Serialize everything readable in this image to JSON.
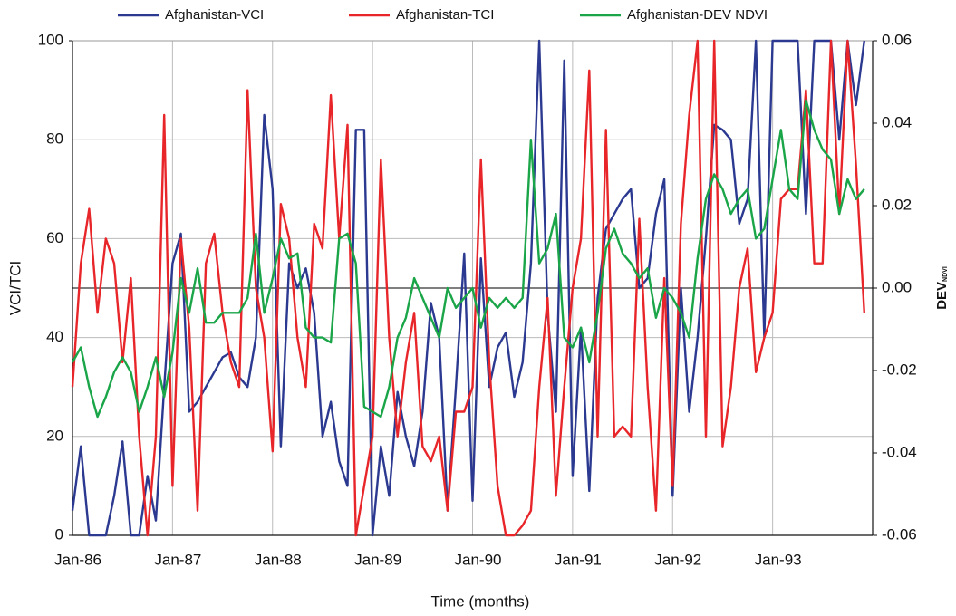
{
  "chart_data": {
    "type": "line",
    "x_label": "Time (months)",
    "y_label": "VCI/TCI",
    "y2_label": "DEV",
    "y2_label_sub": "NDVI",
    "categories": [
      "Jan-86",
      null,
      null,
      null,
      null,
      null,
      null,
      null,
      null,
      null,
      null,
      null,
      "Jan-87",
      null,
      null,
      null,
      null,
      null,
      null,
      null,
      null,
      null,
      null,
      null,
      "Jan-88",
      null,
      null,
      null,
      null,
      null,
      null,
      null,
      null,
      null,
      null,
      null,
      "Jan-89",
      null,
      null,
      null,
      null,
      null,
      null,
      null,
      null,
      null,
      null,
      null,
      "Jan-90",
      null,
      null,
      null,
      null,
      null,
      null,
      null,
      null,
      null,
      null,
      null,
      "Jan-91",
      null,
      null,
      null,
      null,
      null,
      null,
      null,
      null,
      null,
      null,
      null,
      "Jan-92",
      null,
      null,
      null,
      null,
      null,
      null,
      null,
      null,
      null,
      null,
      null,
      "Jan-93",
      null,
      null,
      null,
      null,
      null,
      null,
      null,
      null,
      null,
      null,
      null
    ],
    "ylim": [
      0,
      100
    ],
    "yticks": [
      0,
      20,
      40,
      60,
      80,
      100
    ],
    "y2lim": [
      -0.06,
      0.06
    ],
    "y2ticks": [
      -0.06,
      -0.04,
      -0.02,
      {
        "value": 0,
        "label": "0.00"
      },
      0.02,
      0.04,
      0.06
    ],
    "grid": true,
    "legend": "top",
    "series": [
      {
        "name": "Afghanistan-VCI",
        "color": "#2b3990",
        "values": [
          5,
          18,
          0,
          0,
          0,
          8,
          19,
          0,
          0,
          12,
          3,
          30,
          55,
          61,
          25,
          27,
          30,
          33,
          36,
          37,
          32,
          30,
          40,
          85,
          70,
          18,
          55,
          50,
          54,
          45,
          20,
          27,
          15,
          10,
          82,
          82,
          0,
          18,
          8,
          29,
          20,
          14,
          25,
          47,
          40,
          5,
          30,
          57,
          7,
          56,
          30,
          38,
          41,
          28,
          35,
          55,
          100,
          45,
          25,
          96,
          12,
          42,
          9,
          48,
          62,
          65,
          68,
          70,
          50,
          52,
          65,
          72,
          8,
          50,
          25,
          40,
          60,
          83,
          82,
          80,
          63,
          68,
          100,
          40,
          100,
          100,
          100,
          100,
          65,
          100,
          100,
          100,
          80,
          100,
          87,
          100
        ]
      },
      {
        "name": "Afghanistan-TCI",
        "color": "#e8262a",
        "values": [
          30,
          55,
          66,
          45,
          60,
          55,
          35,
          52,
          20,
          0,
          20,
          85,
          10,
          60,
          42,
          5,
          55,
          61,
          45,
          35,
          30,
          90,
          50,
          40,
          17,
          67,
          60,
          40,
          30,
          63,
          58,
          89,
          60,
          83,
          0,
          10,
          20,
          76,
          40,
          20,
          35,
          45,
          18,
          15,
          20,
          5,
          25,
          25,
          30,
          76,
          35,
          10,
          0,
          0,
          2,
          5,
          30,
          48,
          8,
          30,
          50,
          60,
          94,
          20,
          82,
          20,
          22,
          20,
          64,
          30,
          5,
          52,
          10,
          63,
          85,
          100,
          20,
          100,
          18,
          30,
          50,
          58,
          33,
          40,
          45,
          68,
          70,
          70,
          90,
          55,
          55,
          100,
          65,
          100,
          75,
          45
        ]
      },
      {
        "name": "Afghanistan-DEV NDVI",
        "color": "#1aa548",
        "axis": "y2",
        "values": [
          -0.018,
          -0.0144,
          -0.024,
          -0.0312,
          -0.0264,
          -0.0204,
          -0.0168,
          -0.0204,
          -0.03,
          -0.024,
          -0.0168,
          -0.0264,
          -0.0156,
          0.0024,
          -0.006,
          0.0048,
          -0.0084,
          -0.0084,
          -0.006,
          -0.006,
          -0.006,
          -0.0024,
          0.0132,
          -0.006,
          0.0024,
          0.012,
          0.0072,
          0.0084,
          -0.0096,
          -0.012,
          -0.012,
          -0.0132,
          0.012,
          0.0132,
          0.006,
          -0.0288,
          -0.03,
          -0.0312,
          -0.024,
          -0.012,
          -0.0072,
          0.0024,
          -0.0024,
          -0.0072,
          -0.012,
          0,
          -0.0048,
          -0.0024,
          0,
          -0.0096,
          -0.0024,
          -0.0048,
          -0.0024,
          -0.0048,
          -0.0024,
          0.036,
          0.006,
          0.0096,
          0.018,
          -0.012,
          -0.0144,
          -0.0096,
          -0.018,
          -0.006,
          0.0096,
          0.0144,
          0.0084,
          0.006,
          0.0024,
          0.0048,
          -0.0072,
          0,
          -0.0024,
          -0.006,
          -0.012,
          0.0072,
          0.0216,
          0.0276,
          0.024,
          0.018,
          0.0216,
          0.024,
          0.012,
          0.0144,
          0.0264,
          0.0384,
          0.024,
          0.0216,
          0.0456,
          0.0384,
          0.0336,
          0.0312,
          0.018,
          0.0264,
          0.0216,
          0.024
        ]
      }
    ]
  }
}
